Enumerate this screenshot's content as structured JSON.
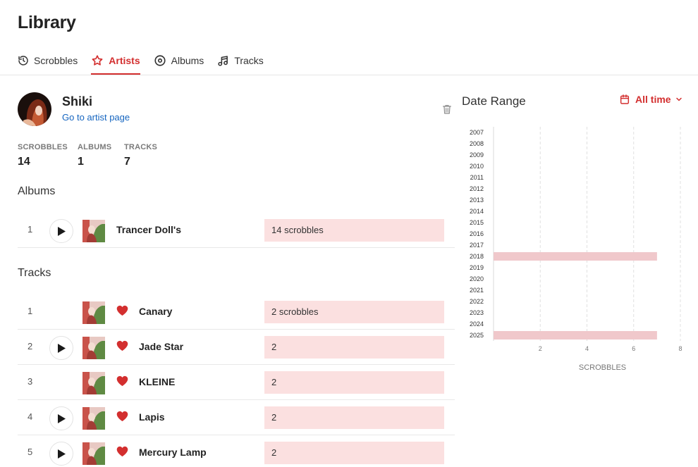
{
  "page": {
    "title": "Library"
  },
  "tabs": [
    {
      "label": "Scrobbles",
      "icon": "history-icon",
      "active": false
    },
    {
      "label": "Artists",
      "icon": "star-icon",
      "active": true
    },
    {
      "label": "Albums",
      "icon": "disc-icon",
      "active": false
    },
    {
      "label": "Tracks",
      "icon": "music-note-icon",
      "active": false
    }
  ],
  "artist": {
    "name": "Shiki",
    "link_label": "Go to artist page",
    "stats": [
      {
        "label": "SCROBBLES",
        "value": "14"
      },
      {
        "label": "ALBUMS",
        "value": "1"
      },
      {
        "label": "TRACKS",
        "value": "7"
      }
    ]
  },
  "albums": {
    "title": "Albums",
    "items": [
      {
        "index": "1",
        "name": "Trancer Doll's",
        "scrobbles": "14 scrobbles",
        "fill": 1.0,
        "has_play": true
      }
    ]
  },
  "tracks": {
    "title": "Tracks",
    "items": [
      {
        "index": "1",
        "name": "Canary",
        "scrobbles": "2 scrobbles",
        "fill": 1.0,
        "has_play": false
      },
      {
        "index": "2",
        "name": "Jade Star",
        "scrobbles": "2",
        "fill": 1.0,
        "has_play": true
      },
      {
        "index": "3",
        "name": "KLEINE",
        "scrobbles": "2",
        "fill": 1.0,
        "has_play": false
      },
      {
        "index": "4",
        "name": "Lapis",
        "scrobbles": "2",
        "fill": 1.0,
        "has_play": true
      },
      {
        "index": "5",
        "name": "Mercury Lamp",
        "scrobbles": "2",
        "fill": 1.0,
        "has_play": true
      }
    ]
  },
  "date_range": {
    "title": "Date Range",
    "selected": "All time"
  },
  "colors": {
    "accent": "#d32f2f",
    "bar": "#fbe0e0",
    "chart_bar": "#f0c8cb",
    "link": "#1565c0"
  },
  "chart_data": {
    "type": "bar",
    "orientation": "horizontal",
    "categories": [
      "2007",
      "2008",
      "2009",
      "2010",
      "2011",
      "2012",
      "2013",
      "2014",
      "2015",
      "2016",
      "2017",
      "2018",
      "2019",
      "2020",
      "2021",
      "2022",
      "2023",
      "2024",
      "2025"
    ],
    "values": [
      0,
      0,
      0,
      0,
      0,
      0,
      0,
      0,
      0,
      0,
      0,
      7,
      0,
      0,
      0,
      0,
      0,
      0,
      7
    ],
    "xlabel": "SCROBBLES",
    "xticks": [
      2,
      4,
      6,
      8
    ],
    "xlim": [
      0,
      8
    ],
    "grid": true
  }
}
